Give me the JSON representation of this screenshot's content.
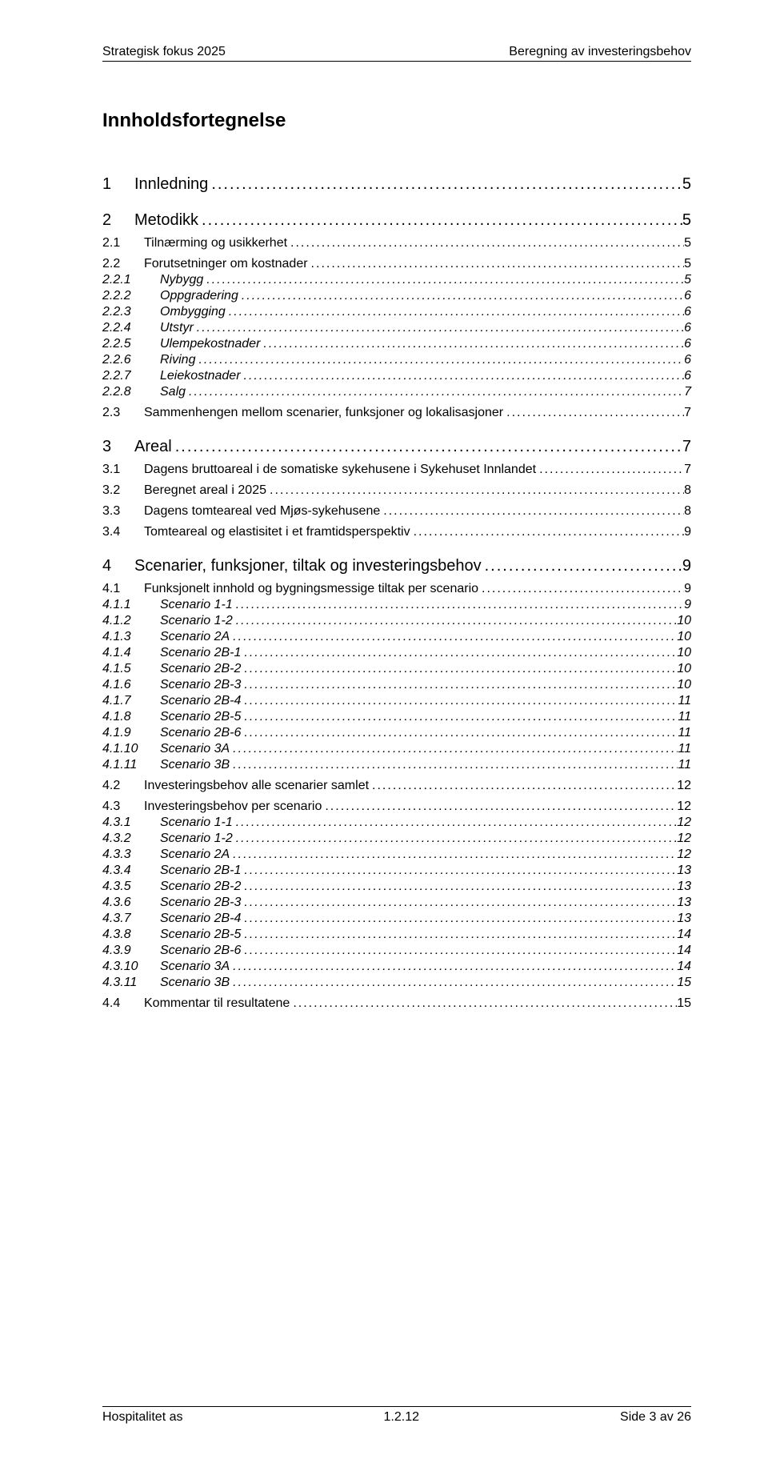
{
  "header": {
    "left": "Strategisk fokus 2025",
    "right": "Beregning av investeringsbehov"
  },
  "toc_title": "Innholdsfortegnelse",
  "entries": [
    {
      "lvl": 1,
      "num": "1",
      "label": "Innledning",
      "page": "5"
    },
    {
      "lvl": 1,
      "num": "2",
      "label": "Metodikk",
      "page": "5"
    },
    {
      "lvl": 2,
      "num": "2.1",
      "label": "Tilnærming og usikkerhet",
      "page": "5"
    },
    {
      "lvl": 2,
      "num": "2.2",
      "label": "Forutsetninger om kostnader",
      "page": "5"
    },
    {
      "lvl": 3,
      "num": "2.2.1",
      "label": "Nybygg",
      "page": "5"
    },
    {
      "lvl": 3,
      "num": "2.2.2",
      "label": "Oppgradering",
      "page": "6"
    },
    {
      "lvl": 3,
      "num": "2.2.3",
      "label": "Ombygging",
      "page": "6"
    },
    {
      "lvl": 3,
      "num": "2.2.4",
      "label": "Utstyr",
      "page": "6"
    },
    {
      "lvl": 3,
      "num": "2.2.5",
      "label": "Ulempekostnader",
      "page": "6"
    },
    {
      "lvl": 3,
      "num": "2.2.6",
      "label": "Riving",
      "page": "6"
    },
    {
      "lvl": 3,
      "num": "2.2.7",
      "label": "Leiekostnader",
      "page": "6"
    },
    {
      "lvl": 3,
      "num": "2.2.8",
      "label": "Salg",
      "page": "7"
    },
    {
      "lvl": 2,
      "num": "2.3",
      "label": "Sammenhengen mellom scenarier, funksjoner og lokalisasjoner",
      "page": "7"
    },
    {
      "lvl": 1,
      "num": "3",
      "label": "Areal",
      "page": "7"
    },
    {
      "lvl": 2,
      "num": "3.1",
      "label": "Dagens bruttoareal i de somatiske sykehusene i Sykehuset Innlandet",
      "page": "7"
    },
    {
      "lvl": 2,
      "num": "3.2",
      "label": "Beregnet areal i 2025",
      "page": "8"
    },
    {
      "lvl": 2,
      "num": "3.3",
      "label": "Dagens tomteareal ved Mjøs-sykehusene",
      "page": "8"
    },
    {
      "lvl": 2,
      "num": "3.4",
      "label": "Tomteareal og elastisitet i et framtidsperspektiv",
      "page": "9"
    },
    {
      "lvl": 1,
      "num": "4",
      "label": "Scenarier, funksjoner, tiltak og investeringsbehov",
      "page": "9"
    },
    {
      "lvl": 2,
      "num": "4.1",
      "label": "Funksjonelt innhold og bygningsmessige tiltak per scenario",
      "page": "9"
    },
    {
      "lvl": 3,
      "num": "4.1.1",
      "label": "Scenario 1-1",
      "page": "9"
    },
    {
      "lvl": 3,
      "num": "4.1.2",
      "label": "Scenario 1-2",
      "page": "10"
    },
    {
      "lvl": 3,
      "num": "4.1.3",
      "label": "Scenario 2A",
      "page": "10"
    },
    {
      "lvl": 3,
      "num": "4.1.4",
      "label": "Scenario 2B-1",
      "page": "10"
    },
    {
      "lvl": 3,
      "num": "4.1.5",
      "label": "Scenario 2B-2",
      "page": "10"
    },
    {
      "lvl": 3,
      "num": "4.1.6",
      "label": "Scenario 2B-3",
      "page": "10"
    },
    {
      "lvl": 3,
      "num": "4.1.7",
      "label": "Scenario 2B-4",
      "page": "11"
    },
    {
      "lvl": 3,
      "num": "4.1.8",
      "label": "Scenario 2B-5",
      "page": "11"
    },
    {
      "lvl": 3,
      "num": "4.1.9",
      "label": "Scenario 2B-6",
      "page": "11"
    },
    {
      "lvl": 3,
      "num": "4.1.10",
      "label": "Scenario 3A",
      "page": "11"
    },
    {
      "lvl": 3,
      "num": "4.1.11",
      "label": "Scenario 3B",
      "page": "11"
    },
    {
      "lvl": 2,
      "num": "4.2",
      "label": "Investeringsbehov alle scenarier samlet",
      "page": "12"
    },
    {
      "lvl": 2,
      "num": "4.3",
      "label": "Investeringsbehov per scenario",
      "page": "12"
    },
    {
      "lvl": 3,
      "num": "4.3.1",
      "label": "Scenario 1-1",
      "page": "12"
    },
    {
      "lvl": 3,
      "num": "4.3.2",
      "label": "Scenario 1-2",
      "page": "12"
    },
    {
      "lvl": 3,
      "num": "4.3.3",
      "label": "Scenario 2A",
      "page": "12"
    },
    {
      "lvl": 3,
      "num": "4.3.4",
      "label": "Scenario 2B-1",
      "page": "13"
    },
    {
      "lvl": 3,
      "num": "4.3.5",
      "label": "Scenario 2B-2",
      "page": "13"
    },
    {
      "lvl": 3,
      "num": "4.3.6",
      "label": "Scenario 2B-3",
      "page": "13"
    },
    {
      "lvl": 3,
      "num": "4.3.7",
      "label": "Scenario 2B-4",
      "page": "13"
    },
    {
      "lvl": 3,
      "num": "4.3.8",
      "label": "Scenario 2B-5",
      "page": "14"
    },
    {
      "lvl": 3,
      "num": "4.3.9",
      "label": "Scenario 2B-6",
      "page": "14"
    },
    {
      "lvl": 3,
      "num": "4.3.10",
      "label": "Scenario 3A",
      "page": "14"
    },
    {
      "lvl": 3,
      "num": "4.3.11",
      "label": "Scenario 3B",
      "page": "15"
    },
    {
      "lvl": 2,
      "num": "4.4",
      "label": "Kommentar til resultatene",
      "page": "15"
    }
  ],
  "footer": {
    "left": "Hospitalitet as",
    "center": "1.2.12",
    "right": "Side 3 av 26"
  }
}
